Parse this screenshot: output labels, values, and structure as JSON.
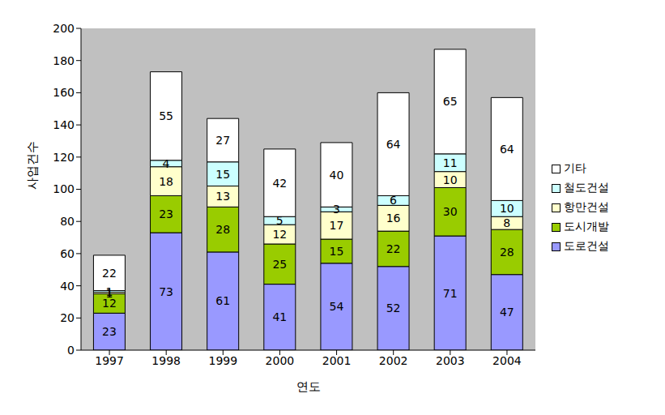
{
  "chart_data": {
    "type": "bar",
    "stacked": true,
    "data_labels": true,
    "grid": false,
    "legend": "right",
    "x_label": "연도",
    "y_label": "사업건수",
    "categories": [
      "1997",
      "1998",
      "1999",
      "2000",
      "2001",
      "2002",
      "2003",
      "2004"
    ],
    "ylim": [
      0,
      200
    ],
    "yticks": [
      0,
      20,
      40,
      60,
      80,
      100,
      120,
      140,
      160,
      180,
      200
    ],
    "series": [
      {
        "name": "도로건설",
        "color": "#9999FF",
        "values": [
          23,
          73,
          61,
          41,
          54,
          52,
          71,
          47
        ]
      },
      {
        "name": "도시개발",
        "color": "#99CC00",
        "values": [
          12,
          23,
          28,
          25,
          15,
          22,
          30,
          28
        ]
      },
      {
        "name": "항만건설",
        "color": "#FFFFCC",
        "values": [
          1,
          18,
          13,
          12,
          17,
          16,
          10,
          8
        ]
      },
      {
        "name": "철도건설",
        "color": "#CCFFFF",
        "values": [
          1,
          4,
          15,
          5,
          3,
          6,
          11,
          10
        ]
      },
      {
        "name": "기타",
        "color": "#FFFFFF",
        "values": [
          22,
          55,
          27,
          42,
          40,
          64,
          65,
          64
        ]
      }
    ]
  }
}
